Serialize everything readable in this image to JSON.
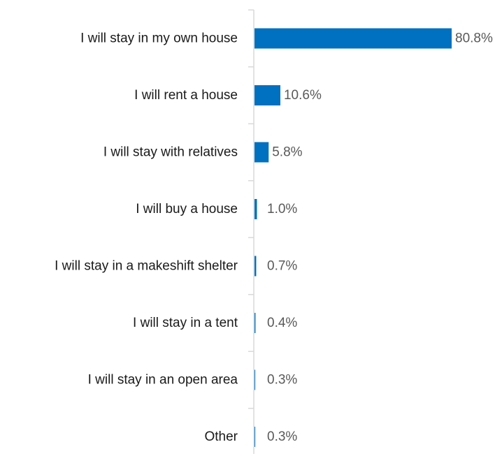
{
  "chart_data": {
    "type": "bar",
    "orientation": "horizontal",
    "title": "",
    "xlabel": "",
    "ylabel": "",
    "categories": [
      "I will stay in my own house",
      "I will rent a house",
      "I will stay with relatives",
      "I will buy a house",
      "I will stay in a makeshift shelter",
      "I will stay in a tent",
      "I will stay in an open area",
      "Other"
    ],
    "values": [
      80.8,
      10.6,
      5.8,
      1.0,
      0.7,
      0.4,
      0.3,
      0.3
    ],
    "value_labels": [
      "80.8%",
      "10.6%",
      "5.8%",
      "1.0%",
      "0.7%",
      "0.4%",
      "0.3%",
      "0.3%"
    ],
    "value_unit": "%",
    "xlim": [
      0,
      80.8
    ],
    "grid": false,
    "legend": "none",
    "bar_color": "#0070c0",
    "axis_color": "#d9d9d9"
  }
}
